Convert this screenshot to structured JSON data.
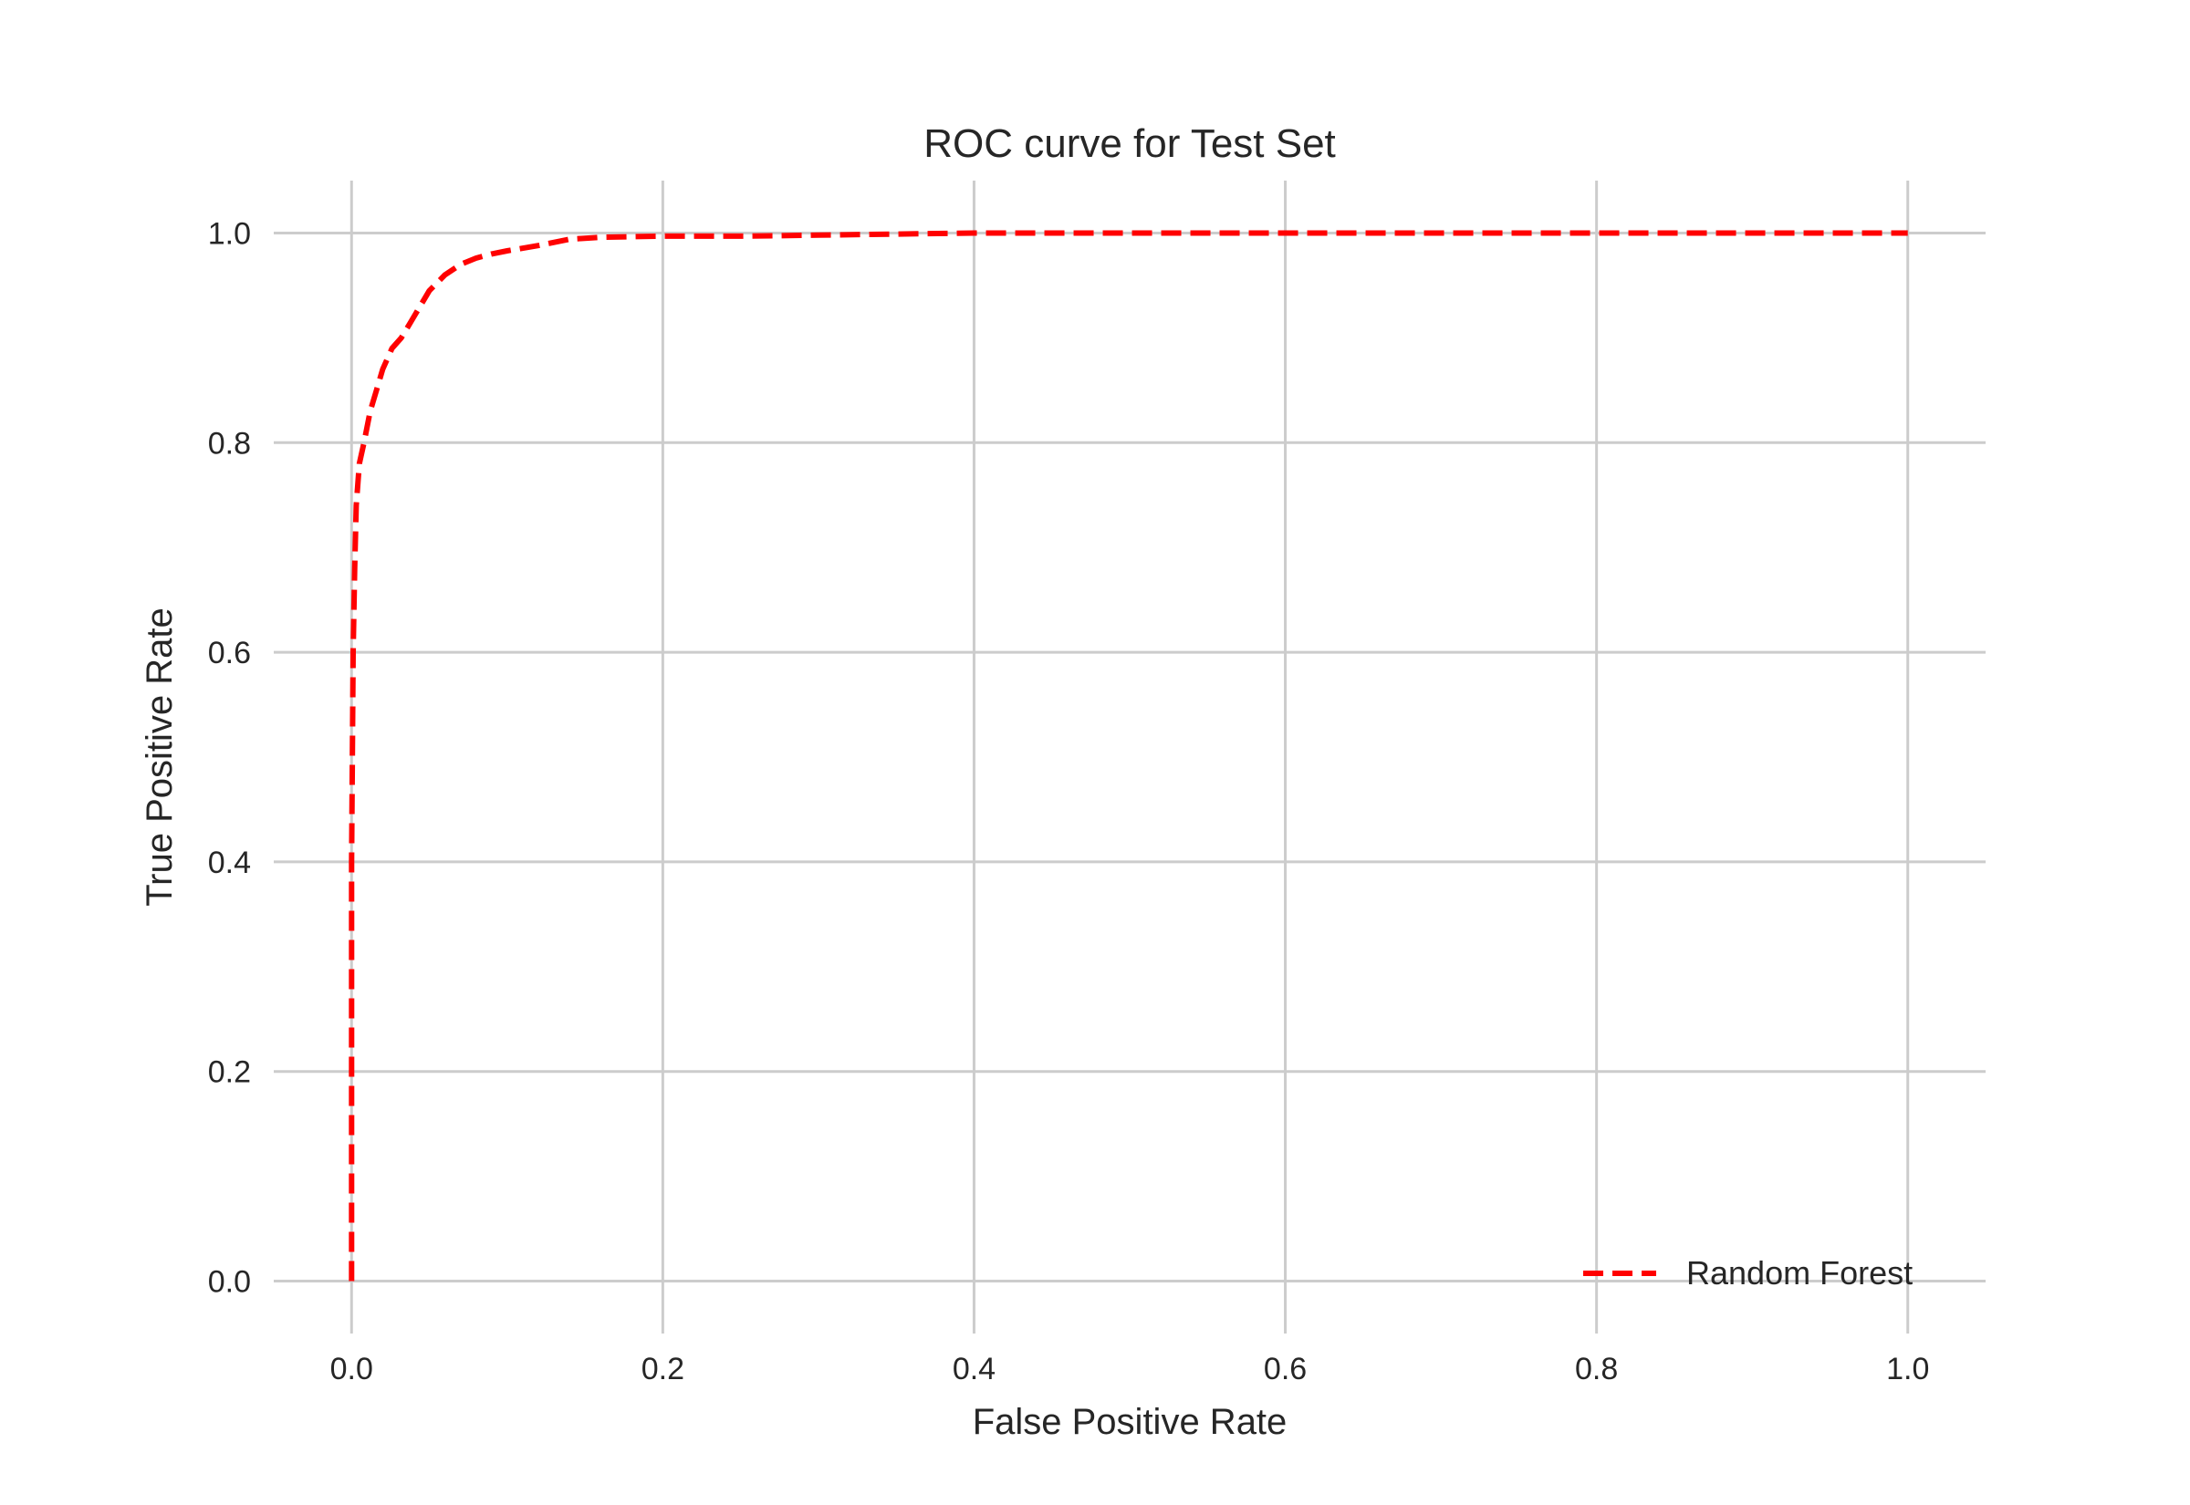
{
  "chart_data": {
    "type": "line",
    "title": "ROC curve for Test Set",
    "xlabel": "False Positive Rate",
    "ylabel": "True Positive Rate",
    "xlim": [
      -0.05,
      1.05
    ],
    "ylim": [
      -0.05,
      1.05
    ],
    "xticks": [
      0.0,
      0.2,
      0.4,
      0.6,
      0.8,
      1.0
    ],
    "yticks": [
      0.0,
      0.2,
      0.4,
      0.6,
      0.8,
      1.0
    ],
    "xtick_labels": [
      "0.0",
      "0.2",
      "0.4",
      "0.6",
      "0.8",
      "1.0"
    ],
    "ytick_labels": [
      "0.0",
      "0.2",
      "0.4",
      "0.6",
      "0.8",
      "1.0"
    ],
    "grid": true,
    "legend_position": "lower-right",
    "series": [
      {
        "name": "Random Forest",
        "color": "#ff0000",
        "line_style": "dashed",
        "x": [
          0.0,
          0.0,
          0.001,
          0.002,
          0.003,
          0.005,
          0.008,
          0.012,
          0.016,
          0.02,
          0.026,
          0.032,
          0.038,
          0.044,
          0.05,
          0.06,
          0.07,
          0.08,
          0.09,
          0.1,
          0.12,
          0.14,
          0.16,
          0.2,
          0.25,
          0.3,
          0.35,
          0.4,
          0.6,
          0.8,
          1.0
        ],
        "y": [
          0.0,
          0.4,
          0.6,
          0.68,
          0.74,
          0.78,
          0.8,
          0.83,
          0.85,
          0.87,
          0.89,
          0.9,
          0.915,
          0.93,
          0.945,
          0.96,
          0.97,
          0.976,
          0.98,
          0.983,
          0.988,
          0.994,
          0.996,
          0.997,
          0.997,
          0.998,
          0.999,
          1.0,
          1.0,
          1.0,
          1.0
        ]
      }
    ]
  }
}
